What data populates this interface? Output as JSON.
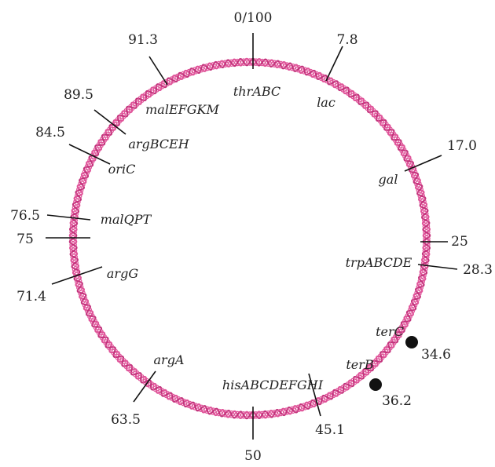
{
  "diagram": {
    "colors": {
      "helix": "#e0559a",
      "helix_dark": "#c2347c",
      "tick": "#111111",
      "text": "#222222",
      "marker": "#111111"
    },
    "positions": {
      "origin": "0/100",
      "lac": "7.8",
      "gal": "17.0",
      "p25": "25",
      "trp": "28.3",
      "terC": "34.6",
      "terB": "36.2",
      "his": "45.1",
      "p50": "50",
      "argA": "63.5",
      "argG": "71.4",
      "p75": "75",
      "malQPT": "76.5",
      "oriC": "84.5",
      "argBCEH": "89.5",
      "malEFGKM": "91.3"
    },
    "genes": {
      "thrABC": "thrABC",
      "lac": "lac",
      "gal": "gal",
      "trpABCDE": "trpABCDE",
      "terC": "terC",
      "terB": "terB",
      "hisABCDEFGHI": "hisABCDEFGHI",
      "argA": "argA",
      "argG": "argG",
      "malQPT": "malQPT",
      "oriC": "oriC",
      "argBCEH": "argBCEH",
      "malEFGKM": "malEFGKM"
    }
  }
}
